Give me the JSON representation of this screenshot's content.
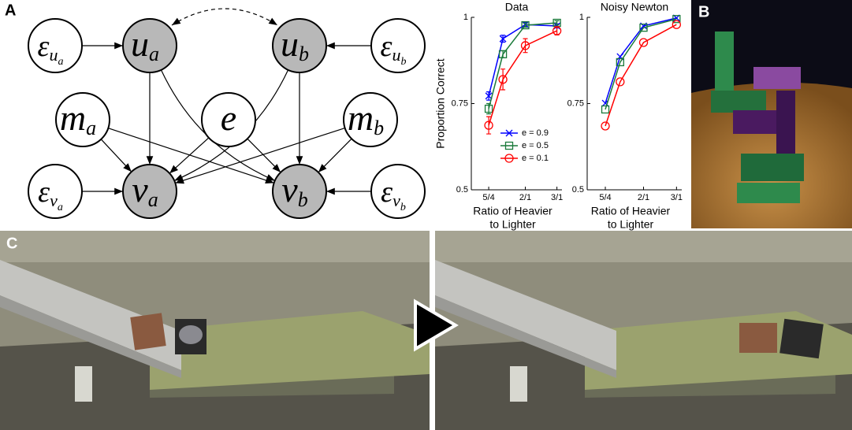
{
  "panel_labels": [
    "A",
    "B",
    "C"
  ],
  "graph": {
    "nodes": [
      {
        "label": "ε",
        "sub": "u",
        "subsub": "a"
      },
      {
        "label": "u",
        "sub": "a"
      },
      {
        "label": "u",
        "sub": "b"
      },
      {
        "label": "ε",
        "sub": "u",
        "subsub": "b"
      },
      {
        "label": "m",
        "sub": "a"
      },
      {
        "label": "e"
      },
      {
        "label": "m",
        "sub": "b"
      },
      {
        "label": "ε",
        "sub": "v",
        "subsub": "a"
      },
      {
        "label": "v",
        "sub": "a"
      },
      {
        "label": "v",
        "sub": "b"
      },
      {
        "label": "ε",
        "sub": "v",
        "subsub": "b"
      }
    ]
  },
  "chart_data": [
    {
      "type": "line",
      "title": "Data",
      "ylabel": "Proportion Correct",
      "xlabel": [
        "Ratio of Heavier",
        "to Lighter"
      ],
      "xscale": "log",
      "x": [
        1.25,
        1.5,
        2,
        3
      ],
      "xlim": [
        1,
        3.2
      ],
      "xticks": [
        {
          "value": 1.25,
          "label": "5/4"
        },
        {
          "value": 2,
          "label": "2/1"
        },
        {
          "value": 3,
          "label": "3/1"
        }
      ],
      "ylim": [
        0.5,
        1
      ],
      "yticks": [
        0.5,
        0.75,
        1
      ],
      "legend": "lower right",
      "series": [
        {
          "name": "e = 0.9",
          "color": "#0000ff",
          "marker": "x",
          "values": [
            0.772,
            0.938,
            0.979,
            0.975
          ],
          "errors": [
            0.012,
            0.01,
            0.006,
            0.006
          ]
        },
        {
          "name": "e = 0.5",
          "color": "#1a7a3a",
          "marker": "square",
          "values": [
            0.735,
            0.893,
            0.977,
            0.984
          ],
          "errors": [
            0.015,
            0.01,
            0.006,
            0.006
          ]
        },
        {
          "name": "e = 0.1",
          "color": "#ff0000",
          "marker": "circle",
          "values": [
            0.687,
            0.82,
            0.918,
            0.961
          ],
          "errors": [
            0.025,
            0.03,
            0.02,
            0.012
          ]
        }
      ]
    },
    {
      "type": "line",
      "title": "Noisy Newton",
      "xlabel": [
        "Ratio of Heavier",
        "to Lighter"
      ],
      "xscale": "log",
      "x": [
        1.25,
        1.5,
        2,
        3
      ],
      "xlim": [
        1,
        3.2
      ],
      "xticks": [
        {
          "value": 1.25,
          "label": "5/4"
        },
        {
          "value": 2,
          "label": "2/1"
        },
        {
          "value": 3,
          "label": "3/1"
        }
      ],
      "ylim": [
        0.5,
        1
      ],
      "yticks": [
        0.5,
        0.75,
        1
      ],
      "series": [
        {
          "color": "#0000ff",
          "marker": "x",
          "values": [
            0.751,
            0.886,
            0.975,
            0.998
          ]
        },
        {
          "color": "#1a7a3a",
          "marker": "square",
          "values": [
            0.733,
            0.87,
            0.97,
            0.995
          ]
        },
        {
          "color": "#ff0000",
          "marker": "circle",
          "values": [
            0.685,
            0.813,
            0.927,
            0.979
          ]
        }
      ]
    }
  ]
}
